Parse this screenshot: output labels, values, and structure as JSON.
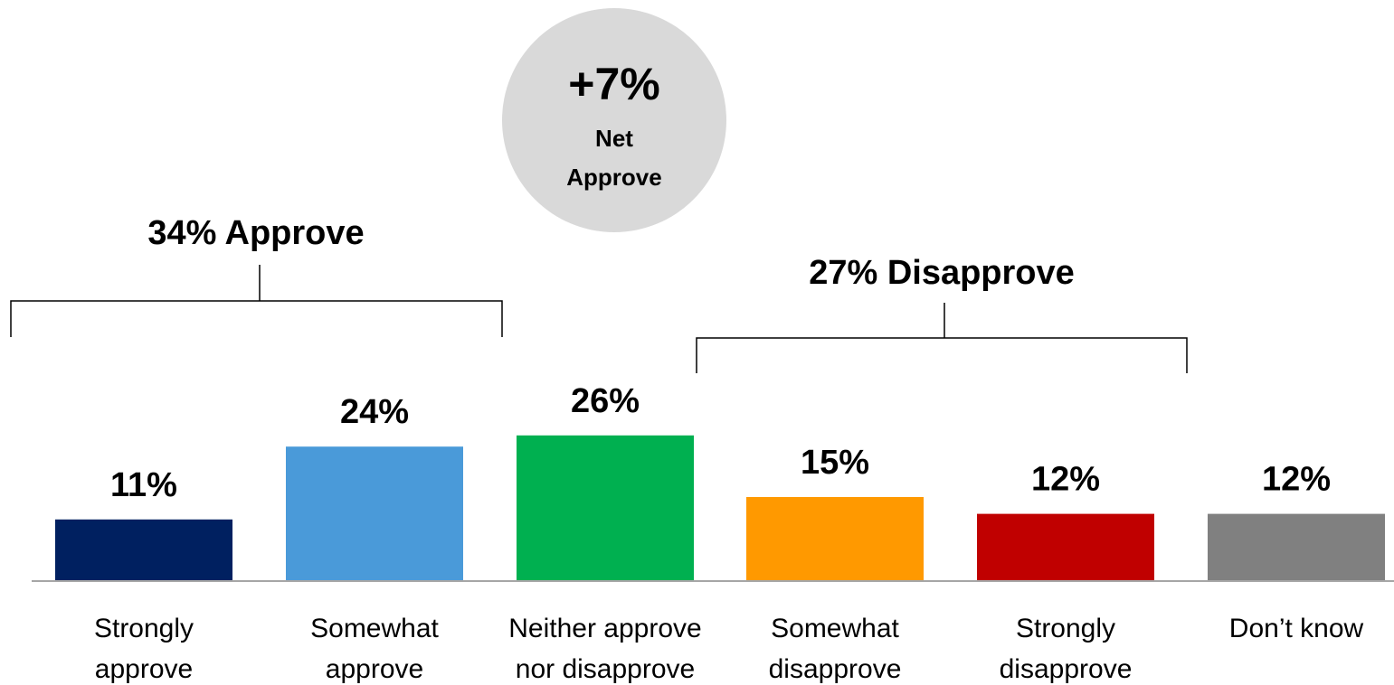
{
  "net_badge": {
    "value": "+7%",
    "line1": "Net",
    "line2": "Approve",
    "color": "#d9d9d9"
  },
  "groups": {
    "approve": {
      "label": "34% Approve"
    },
    "disapprove": {
      "label": "27% Disapprove"
    }
  },
  "chart_data": {
    "type": "bar",
    "categories": [
      [
        "Strongly",
        "approve"
      ],
      [
        "Somewhat",
        "approve"
      ],
      [
        "Neither approve",
        "nor disapprove"
      ],
      [
        "Somewhat",
        "disapprove"
      ],
      [
        "Strongly",
        "disapprove"
      ],
      [
        "Don’t know"
      ]
    ],
    "values": [
      11,
      24,
      26,
      15,
      12,
      12
    ],
    "data_labels": [
      "11%",
      "24%",
      "26%",
      "15%",
      "12%",
      "12%"
    ],
    "colors": [
      "#002060",
      "#4a9ad9",
      "#00b050",
      "#ff9900",
      "#c00000",
      "#808080"
    ],
    "ylim": [
      0,
      30
    ],
    "grid": false
  }
}
